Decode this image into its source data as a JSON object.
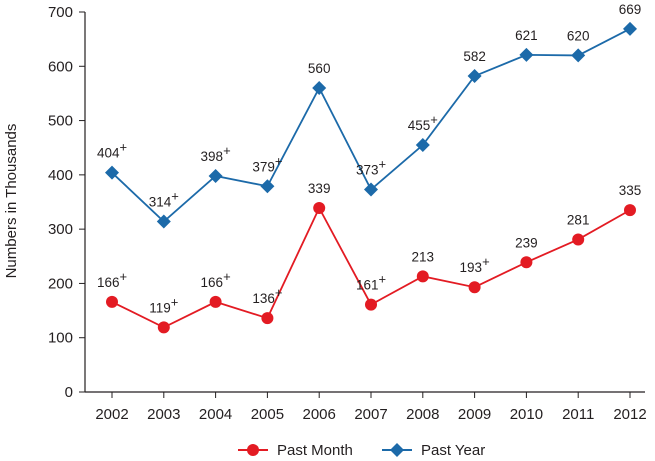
{
  "chart_data": {
    "type": "line",
    "title": "",
    "xlabel": "",
    "ylabel": "Numbers in Thousands",
    "x": [
      "2002",
      "2003",
      "2004",
      "2005",
      "2006",
      "2007",
      "2008",
      "2009",
      "2010",
      "2011",
      "2012"
    ],
    "yticks": [
      0,
      100,
      200,
      300,
      400,
      500,
      600,
      700
    ],
    "ylim": [
      0,
      700
    ],
    "grid": false,
    "legend_position": "bottom-center",
    "series": [
      {
        "name": "Past Month",
        "color": "#e31b23",
        "marker": "circle",
        "values": [
          166,
          119,
          166,
          136,
          339,
          161,
          213,
          193,
          239,
          281,
          335
        ],
        "labels": [
          "166+",
          "119+",
          "166+",
          "136+",
          "339",
          "161+",
          "213",
          "193+",
          "239",
          "281",
          "335"
        ]
      },
      {
        "name": "Past Year",
        "color": "#1c6aa9",
        "marker": "diamond",
        "values": [
          404,
          314,
          398,
          379,
          560,
          373,
          455,
          582,
          621,
          620,
          669
        ],
        "labels": [
          "404+",
          "314+",
          "398+",
          "379+",
          "560",
          "373+",
          "455+",
          "582",
          "621",
          "620",
          "669"
        ]
      }
    ]
  }
}
